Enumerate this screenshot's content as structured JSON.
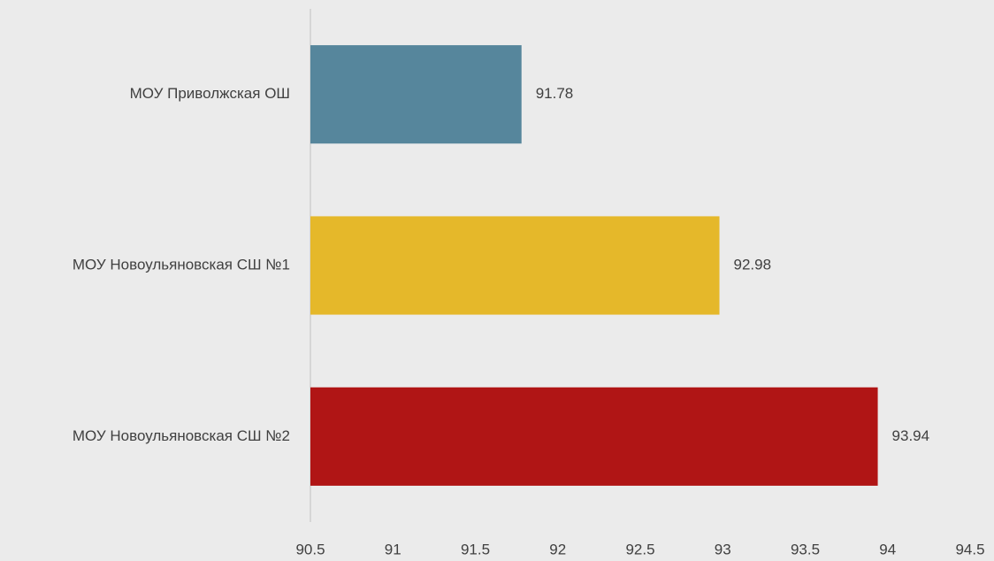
{
  "chart_data": {
    "type": "bar",
    "orientation": "horizontal",
    "categories": [
      "МОУ Приволжская ОШ",
      "МОУ Новоульяновская СШ №1",
      "МОУ Новоульяновская СШ №2"
    ],
    "values": [
      91.78,
      92.98,
      93.94
    ],
    "colors": [
      "#56869c",
      "#e5b82a",
      "#b01515"
    ],
    "xlim": [
      90.5,
      94.5
    ],
    "xticks": [
      90.5,
      91,
      91.5,
      92,
      92.5,
      93,
      93.5,
      94,
      94.5
    ],
    "grid": false
  }
}
